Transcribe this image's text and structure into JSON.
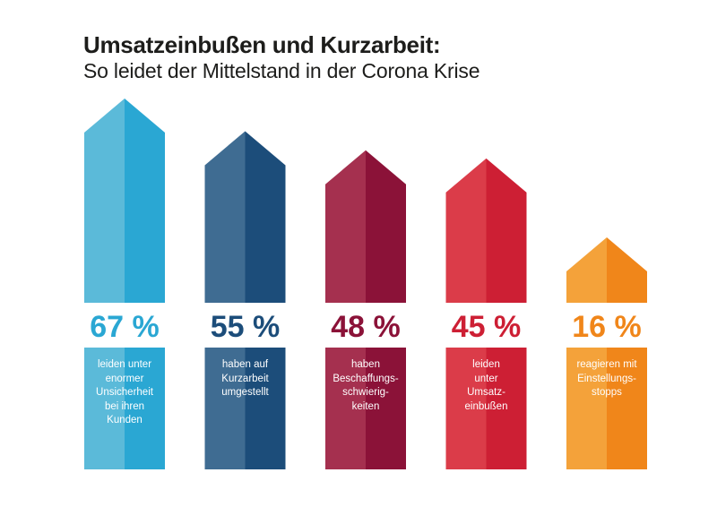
{
  "title": "Umsatzeinbußen und Kurzarbeit:",
  "subtitle": "So leidet der Mittelstand in der Corona Krise",
  "chart_data": {
    "type": "bar",
    "title": "Umsatzeinbußen und Kurzarbeit:",
    "subtitle": "So leidet der Mittelstand in der Corona Krise",
    "unit": "%",
    "xlabel": "",
    "ylabel": "",
    "ylim": [
      0,
      67
    ],
    "grid": false,
    "legend": "none",
    "categories": [
      "leiden unter enormer Unsicherheit bei ihren Kunden",
      "haben auf Kurzarbeit umgestellt",
      "haben Beschaffungs-schwierig-keiten",
      "leiden unter Umsatz-einbußen",
      "reagieren mit Einstellungs-stopps"
    ],
    "values": [
      67,
      55,
      48,
      45,
      16
    ],
    "labels": [
      "67 %",
      "55 %",
      "48 %",
      "45 %",
      "16 %"
    ],
    "description_lines": [
      [
        "leiden unter",
        "enormer",
        "Unsicherheit",
        "bei ihren",
        "Kunden"
      ],
      [
        "haben auf",
        "Kurzarbeit",
        "umgestellt"
      ],
      [
        "haben",
        "Beschaffungs-",
        "schwierig-",
        "keiten"
      ],
      [
        "leiden",
        "unter",
        "Umsatz-",
        "einbußen"
      ],
      [
        "reagieren mit",
        "Einstellungs-",
        "stopps"
      ]
    ],
    "colors": [
      {
        "light": "#5bbad9",
        "dark": "#2aa7d3"
      },
      {
        "light": "#3f6c92",
        "dark": "#1c4d7a"
      },
      {
        "light": "#a5304f",
        "dark": "#8b1238"
      },
      {
        "light": "#db3c49",
        "dark": "#cd1f34"
      },
      {
        "light": "#f4a23a",
        "dark": "#f0861a"
      }
    ]
  }
}
